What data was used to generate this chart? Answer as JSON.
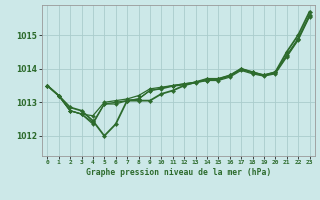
{
  "title": "Graphe pression niveau de la mer (hPa)",
  "bg_color": "#cce8e8",
  "grid_color": "#aacccc",
  "line_color": "#2d6b2d",
  "marker_color": "#2d6b2d",
  "x_ticks": [
    0,
    1,
    2,
    3,
    4,
    5,
    6,
    7,
    8,
    9,
    10,
    11,
    12,
    13,
    14,
    15,
    16,
    17,
    18,
    19,
    20,
    21,
    22,
    23
  ],
  "y_ticks": [
    1012,
    1013,
    1014,
    1015
  ],
  "ylim": [
    1011.4,
    1015.9
  ],
  "xlim": [
    -0.5,
    23.5
  ],
  "series": [
    [
      1013.5,
      1013.2,
      1012.85,
      1012.75,
      1012.45,
      1012.0,
      1012.35,
      1013.05,
      1013.05,
      1013.05,
      1013.25,
      1013.35,
      1013.5,
      1013.6,
      1013.7,
      1013.7,
      1013.8,
      1014.0,
      1013.9,
      1013.8,
      1013.9,
      1014.5,
      1015.0,
      1015.7
    ],
    [
      1013.5,
      1013.2,
      1012.75,
      1012.65,
      1012.6,
      1013.0,
      1013.05,
      1013.1,
      1013.2,
      1013.4,
      1013.45,
      1013.5,
      1013.55,
      1013.6,
      1013.65,
      1013.65,
      1013.75,
      1013.95,
      1013.85,
      1013.78,
      1013.85,
      1014.35,
      1014.85,
      1015.55
    ],
    [
      1013.5,
      1013.2,
      1012.75,
      1012.65,
      1012.35,
      1012.95,
      1012.95,
      1013.05,
      1013.1,
      1013.35,
      1013.4,
      1013.48,
      1013.52,
      1013.58,
      1013.65,
      1013.68,
      1013.78,
      1013.98,
      1013.88,
      1013.8,
      1013.88,
      1014.38,
      1014.88,
      1015.58
    ],
    [
      1013.5,
      1013.2,
      1012.75,
      1012.65,
      1012.4,
      1012.95,
      1013.0,
      1013.05,
      1013.1,
      1013.35,
      1013.42,
      1013.5,
      1013.55,
      1013.6,
      1013.68,
      1013.7,
      1013.8,
      1014.0,
      1013.9,
      1013.82,
      1013.9,
      1014.4,
      1014.9,
      1015.6
    ]
  ]
}
